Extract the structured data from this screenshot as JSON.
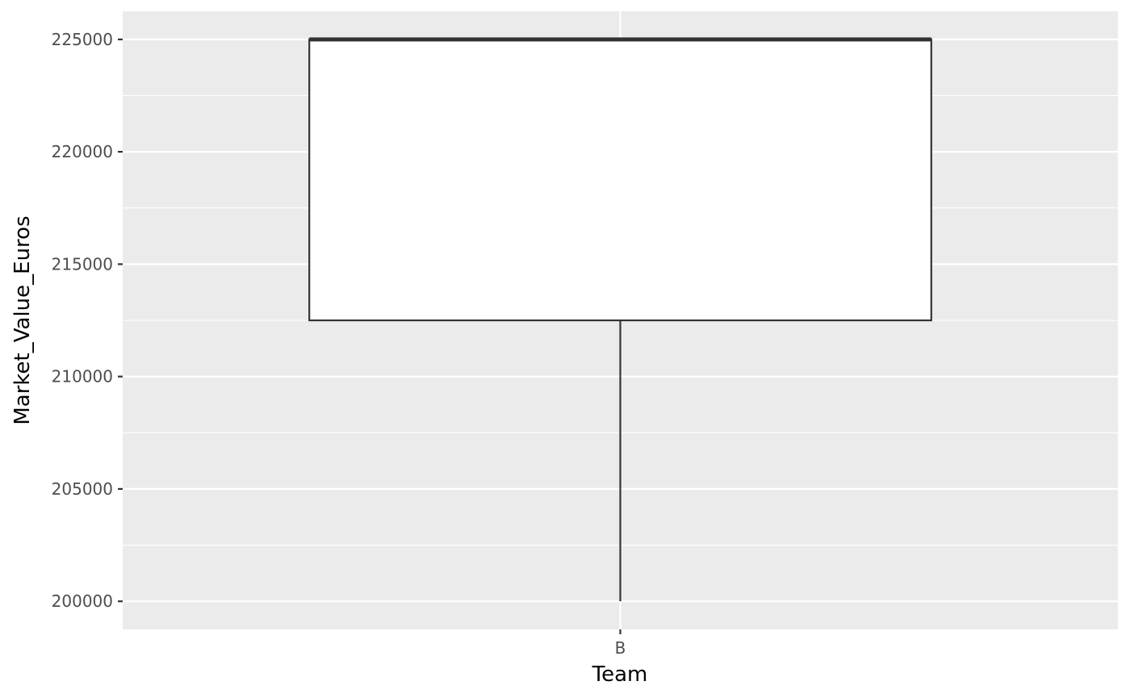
{
  "chart_data": {
    "type": "boxplot",
    "xlabel": "Team",
    "ylabel": "Market_Value_Euros",
    "categories": [
      "B"
    ],
    "ylim": [
      198750,
      226250
    ],
    "yticks": [
      200000,
      205000,
      210000,
      215000,
      220000,
      225000
    ],
    "ytick_labels": [
      "200000",
      "205000",
      "210000",
      "215000",
      "220000",
      "225000"
    ],
    "series": [
      {
        "category": "B",
        "min": 200000,
        "q1": 212500,
        "median": 225000,
        "q3": 225000,
        "max": 225000
      }
    ],
    "grid": true,
    "colors": {
      "panel": "#ebebeb",
      "grid_major": "#ffffff",
      "box_fill": "#ffffff",
      "box_stroke": "#333333",
      "tick_text": "#4d4d4d",
      "axis_title": "#000000"
    }
  }
}
